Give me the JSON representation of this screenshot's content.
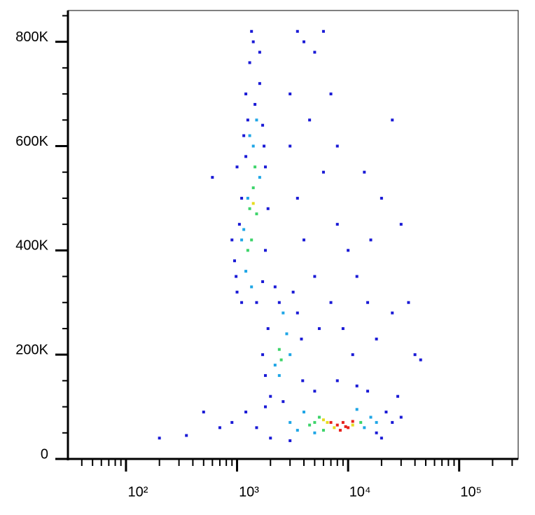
{
  "chart_data": {
    "type": "scatter",
    "xscale": "log",
    "xlim": [
      30,
      340000
    ],
    "ylim": [
      0,
      860000
    ],
    "xticks": [
      {
        "value": 100,
        "label": "10²"
      },
      {
        "value": 1000,
        "label": "10³"
      },
      {
        "value": 10000,
        "label": "10⁴"
      },
      {
        "value": 100000,
        "label": "10⁵"
      }
    ],
    "xminorticks": [
      40,
      50,
      60,
      70,
      80,
      90,
      200,
      300,
      400,
      500,
      600,
      700,
      800,
      900,
      2000,
      3000,
      4000,
      5000,
      6000,
      7000,
      8000,
      9000,
      20000,
      30000,
      40000,
      50000,
      60000,
      70000,
      80000,
      90000,
      200000,
      300000
    ],
    "yticks": [
      0,
      {
        "value": 200000,
        "label": "200K"
      },
      {
        "value": 400000,
        "label": "400K"
      },
      {
        "value": 600000,
        "label": "600K"
      },
      {
        "value": 800000,
        "label": "800K"
      }
    ],
    "yminorticks": [
      50000,
      100000,
      150000,
      250000,
      300000,
      350000,
      450000,
      500000,
      550000,
      650000,
      700000,
      750000,
      850000
    ],
    "series": [
      {
        "color": "#1a1ad6",
        "x": [
          1000,
          1100,
          950,
          1050,
          900,
          1200,
          1300,
          1400,
          1250,
          1600,
          1700,
          1800,
          1150,
          1000,
          1900,
          1800,
          1700,
          1500,
          1350,
          1600,
          1100,
          980,
          1750,
          1450,
          1200,
          1800,
          2000,
          3500,
          3800,
          3200,
          2400,
          1900,
          3900,
          2600,
          1700,
          2200,
          1500,
          1200,
          900,
          2000,
          3000,
          18000,
          22000,
          25000,
          30000,
          15000,
          12000,
          8000,
          5000,
          20000,
          700,
          1800,
          28000,
          4000,
          5000,
          6000,
          7000,
          4500,
          3000,
          3500,
          6000,
          8000,
          10000,
          12000,
          15000,
          20000,
          25000,
          30000,
          5000,
          7000,
          9000,
          11000,
          18000,
          25000,
          40000,
          35000,
          4000,
          5500,
          3000,
          8000,
          14000,
          45000,
          16000,
          600,
          200,
          350,
          500,
          3500
        ],
        "values": [
          320000,
          300000,
          380000,
          450000,
          420000,
          700000,
          760000,
          800000,
          650000,
          720000,
          640000,
          560000,
          620000,
          560000,
          480000,
          400000,
          340000,
          300000,
          820000,
          780000,
          500000,
          350000,
          600000,
          680000,
          580000,
          160000,
          120000,
          280000,
          230000,
          320000,
          300000,
          250000,
          150000,
          110000,
          200000,
          330000,
          60000,
          90000,
          70000,
          40000,
          35000,
          50000,
          90000,
          70000,
          80000,
          130000,
          140000,
          150000,
          130000,
          40000,
          60000,
          100000,
          120000,
          800000,
          780000,
          820000,
          700000,
          650000,
          600000,
          500000,
          550000,
          450000,
          400000,
          350000,
          300000,
          500000,
          650000,
          450000,
          350000,
          300000,
          250000,
          200000,
          230000,
          280000,
          200000,
          300000,
          420000,
          250000,
          700000,
          600000,
          550000,
          190000,
          420000,
          540000,
          40000,
          45000,
          90000,
          820000
        ]
      },
      {
        "color": "#1fa6e6",
        "x": [
          1100,
          1200,
          1300,
          1400,
          1500,
          1250,
          1600,
          1150,
          1350,
          2200,
          2800,
          2400,
          3000,
          2600,
          3000,
          4000,
          14000,
          16000,
          5000,
          12000,
          3500,
          18000
        ],
        "values": [
          420000,
          360000,
          620000,
          600000,
          650000,
          500000,
          540000,
          440000,
          330000,
          180000,
          240000,
          160000,
          200000,
          280000,
          70000,
          90000,
          60000,
          80000,
          50000,
          95000,
          55000,
          70000
        ]
      },
      {
        "color": "#3dd46a",
        "x": [
          1300,
          1400,
          1350,
          1450,
          1250,
          1500,
          2400,
          2500,
          4500,
          5500,
          6000,
          13000,
          5000
        ],
        "values": [
          480000,
          520000,
          420000,
          560000,
          400000,
          470000,
          210000,
          190000,
          65000,
          80000,
          55000,
          70000,
          70000
        ]
      },
      {
        "color": "#e6dc1e",
        "x": [
          1400,
          6500,
          7500,
          11000,
          6000
        ],
        "values": [
          490000,
          70000,
          60000,
          65000,
          75000
        ]
      },
      {
        "color": "#e8201a",
        "x": [
          8000,
          9000,
          10000,
          8500,
          11000,
          9500,
          7000
        ],
        "values": [
          65000,
          70000,
          60000,
          55000,
          72000,
          62000,
          70000
        ]
      }
    ]
  }
}
